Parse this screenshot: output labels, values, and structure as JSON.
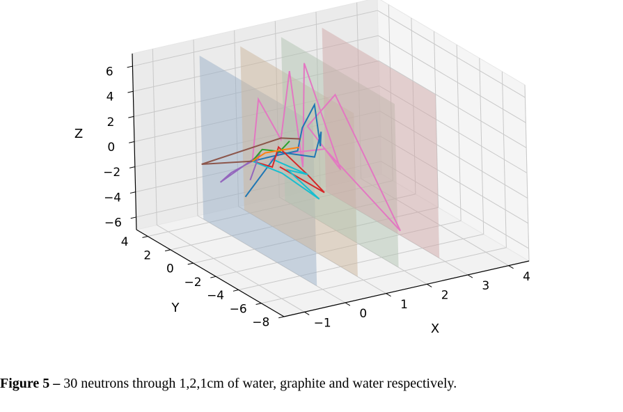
{
  "chart_data": {
    "type": "line3d",
    "xlabel": "X",
    "ylabel": "Y",
    "zlabel": "Z",
    "xlim": [
      -1.5,
      4.5
    ],
    "ylim": [
      -8,
      5
    ],
    "zlim": [
      -7,
      7
    ],
    "xticks": [
      -1,
      0,
      1,
      2,
      3,
      4
    ],
    "yticks": [
      4,
      2,
      0,
      -2,
      -4,
      -6,
      -8
    ],
    "zticks": [
      6,
      4,
      2,
      0,
      -2,
      -4,
      -6
    ],
    "grid": true,
    "planes": [
      {
        "x": 0,
        "color": "#9aafc8",
        "alpha": 0.5,
        "y": [
          -5.5,
          4.5
        ],
        "z": [
          -7,
          6
        ]
      },
      {
        "x": 1,
        "color": "#cbb59c",
        "alpha": 0.5,
        "y": [
          -5.5,
          4.5
        ],
        "z": [
          -7,
          6
        ]
      },
      {
        "x": 2,
        "color": "#b1c3b2",
        "alpha": 0.5,
        "y": [
          -5.5,
          4.5
        ],
        "z": [
          -7,
          6
        ]
      },
      {
        "x": 3,
        "color": "#cfa8a8",
        "alpha": 0.5,
        "y": [
          -5.5,
          4.5
        ],
        "z": [
          -7,
          6
        ]
      }
    ],
    "series": [
      {
        "color": "#e377c2",
        "points": [
          [
            0,
            0,
            0
          ],
          [
            0.4,
            0.8,
            4.2
          ],
          [
            0.6,
            -0.4,
            1.5
          ],
          [
            1.2,
            0.9,
            5.8
          ],
          [
            0.9,
            -1.2,
            -0.5
          ],
          [
            1.4,
            0.3,
            6.6
          ],
          [
            1.6,
            -2.0,
            -0.8
          ],
          [
            1.8,
            1.6,
            0.6
          ],
          [
            2.6,
            2.0,
            2.3
          ],
          [
            2.2,
            -5.0,
            -4.5
          ],
          [
            1.5,
            -1.0,
            0.4
          ],
          [
            0.8,
            0.5,
            -0.3
          ],
          [
            0.3,
            -0.5,
            0.1
          ]
        ]
      },
      {
        "color": "#1f77b4",
        "points": [
          [
            0,
            0,
            0
          ],
          [
            0.5,
            0.3,
            -0.2
          ],
          [
            1.0,
            -0.4,
            0.3
          ],
          [
            1.4,
            0.6,
            1.3
          ],
          [
            1.6,
            0.2,
            3.2
          ],
          [
            1.5,
            -0.6,
            0.4
          ],
          [
            1.8,
            0.4,
            0.8
          ],
          [
            1.3,
            -0.8,
            -0.2
          ],
          [
            0.7,
            0.2,
            0.1
          ],
          [
            -0.6,
            -1.5,
            -1.6
          ]
        ]
      },
      {
        "color": "#d62728",
        "points": [
          [
            0,
            0,
            0
          ],
          [
            0.4,
            -0.3,
            -0.6
          ],
          [
            0.7,
            0.2,
            0.5
          ],
          [
            1.1,
            -0.8,
            -1.4
          ],
          [
            1.3,
            -1.6,
            -2.6
          ],
          [
            0.5,
            -0.6,
            -0.5
          ]
        ]
      },
      {
        "color": "#17becf",
        "points": [
          [
            0,
            0,
            0
          ],
          [
            0.5,
            -0.8,
            -0.9
          ],
          [
            0.9,
            -2.6,
            -2.3
          ],
          [
            0.7,
            -0.6,
            -0.9
          ],
          [
            1.1,
            -0.9,
            -1.4
          ],
          [
            0.5,
            -0.2,
            -0.2
          ]
        ]
      },
      {
        "color": "#9467bd",
        "points": [
          [
            0,
            0,
            0
          ],
          [
            -0.6,
            -0.3,
            -0.3
          ],
          [
            -0.9,
            -0.4,
            -0.8
          ],
          [
            0.2,
            0.1,
            0.3
          ],
          [
            -0.2,
            -0.5,
            -1.1
          ]
        ]
      },
      {
        "color": "#8c564b",
        "points": [
          [
            0,
            0,
            0
          ],
          [
            -1.1,
            0.5,
            0.3
          ],
          [
            0.9,
            0.7,
            0.8
          ],
          [
            1.3,
            0.4,
            0.6
          ]
        ]
      },
      {
        "color": "#2ca02c",
        "points": [
          [
            0,
            0,
            0
          ],
          [
            0.3,
            0.2,
            0.6
          ],
          [
            0.7,
            0.1,
            0.2
          ],
          [
            1.0,
            0.3,
            0.7
          ]
        ]
      },
      {
        "color": "#ff7f0e",
        "points": [
          [
            0,
            0,
            0
          ],
          [
            0.4,
            0.3,
            0.2
          ],
          [
            0.8,
            -0.1,
            0.4
          ],
          [
            1.2,
            0.2,
            0.1
          ]
        ]
      }
    ]
  },
  "caption": {
    "bold": "Figure 5 –",
    "text": " 30 neutrons through 1,2,1cm of water, graphite and water respectively."
  }
}
